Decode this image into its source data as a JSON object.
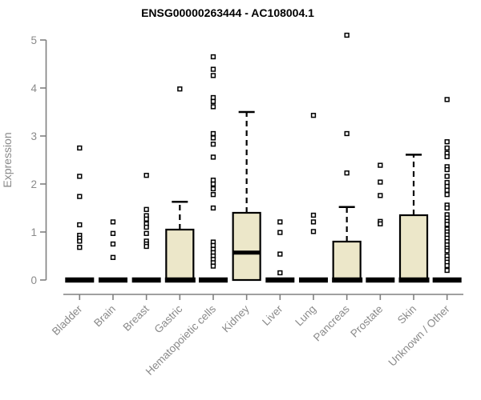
{
  "chart_data": {
    "type": "boxplot",
    "title": "ENSG00000263444 - AC108004.1",
    "ylabel": "Expression",
    "xlabel": "",
    "ylim": [
      0,
      5
    ],
    "yticks": [
      0,
      1,
      2,
      3,
      4,
      5
    ],
    "grid": false,
    "legend": "none",
    "box_fill": "#ece7c9",
    "box_stroke": "#000000",
    "axis_color": "#808080",
    "label_color": "#8a8a8a",
    "categories": [
      "Bladder",
      "Brain",
      "Breast",
      "Gastric",
      "Hematopoietic cells",
      "Kidney",
      "Liver",
      "Lung",
      "Pancreas",
      "Prostate",
      "Skin",
      "Unknown / Other"
    ],
    "series": [
      {
        "name": "Bladder",
        "q1": 0,
        "median": 0,
        "q3": 0,
        "whisker_low": 0,
        "whisker_high": 0,
        "outliers": [
          2.75,
          2.16,
          1.74,
          1.15,
          0.93,
          0.87,
          0.81,
          0.68
        ]
      },
      {
        "name": "Brain",
        "q1": 0,
        "median": 0,
        "q3": 0,
        "whisker_low": 0,
        "whisker_high": 0,
        "outliers": [
          1.21,
          0.97,
          0.75,
          0.47
        ]
      },
      {
        "name": "Breast",
        "q1": 0,
        "median": 0,
        "q3": 0,
        "whisker_low": 0,
        "whisker_high": 0,
        "outliers": [
          2.18,
          1.47,
          1.34,
          1.27,
          1.17,
          1.1,
          0.97,
          0.81,
          0.75,
          0.7
        ]
      },
      {
        "name": "Gastric",
        "q1": 0,
        "median": 0,
        "q3": 1.05,
        "whisker_low": 0,
        "whisker_high": 1.63,
        "outliers": [
          3.98
        ]
      },
      {
        "name": "Hematopoietic cells",
        "q1": 0,
        "median": 0,
        "q3": 0,
        "whisker_low": 0,
        "whisker_high": 0,
        "outliers": [
          4.65,
          4.39,
          4.26,
          3.8,
          3.72,
          3.61,
          3.05,
          2.96,
          2.83,
          2.56,
          2.08,
          2.0,
          1.9,
          1.78,
          1.5,
          0.79,
          0.72,
          0.64,
          0.57,
          0.5,
          0.43,
          0.36,
          0.29
        ]
      },
      {
        "name": "Kidney",
        "q1": 0,
        "median": 0.57,
        "q3": 1.4,
        "whisker_low": 0,
        "whisker_high": 3.5,
        "outliers": []
      },
      {
        "name": "Liver",
        "q1": 0,
        "median": 0,
        "q3": 0,
        "whisker_low": 0,
        "whisker_high": 0,
        "outliers": [
          1.21,
          0.99,
          0.54,
          0.15
        ]
      },
      {
        "name": "Lung",
        "q1": 0,
        "median": 0,
        "q3": 0,
        "whisker_low": 0,
        "whisker_high": 0,
        "outliers": [
          3.43,
          1.35,
          1.21,
          1.01
        ]
      },
      {
        "name": "Pancreas",
        "q1": 0,
        "median": 0,
        "q3": 0.8,
        "whisker_low": 0,
        "whisker_high": 1.52,
        "outliers": [
          5.1,
          3.05,
          2.23
        ]
      },
      {
        "name": "Prostate",
        "q1": 0,
        "median": 0,
        "q3": 0,
        "whisker_low": 0,
        "whisker_high": 0,
        "outliers": [
          2.39,
          2.04,
          1.76,
          1.22,
          1.17
        ]
      },
      {
        "name": "Skin",
        "q1": 0,
        "median": 0,
        "q3": 1.35,
        "whisker_low": 0,
        "whisker_high": 2.61,
        "outliers": []
      },
      {
        "name": "Unknown / Other",
        "q1": 0,
        "median": 0,
        "q3": 0,
        "whisker_low": 0,
        "whisker_high": 0,
        "outliers": [
          3.76,
          2.88,
          2.75,
          2.64,
          2.57,
          2.36,
          2.3,
          2.16,
          2.03,
          1.95,
          1.87,
          1.78,
          1.56,
          1.5,
          1.36,
          1.29,
          1.22,
          1.16,
          1.06,
          1.0,
          0.94,
          0.87,
          0.8,
          0.73,
          0.66,
          0.61,
          0.5,
          0.43,
          0.37,
          0.3,
          0.2
        ]
      }
    ]
  }
}
